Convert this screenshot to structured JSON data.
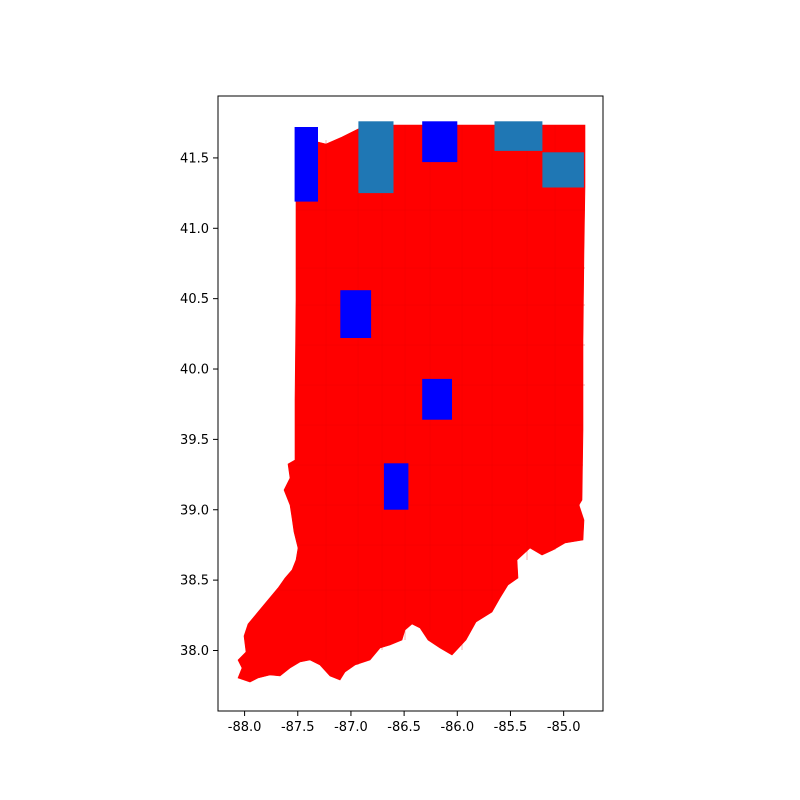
{
  "chart_data": {
    "type": "choropleth",
    "title": "",
    "xlabel": "",
    "ylabel": "",
    "xlim": [
      -88.25,
      -84.63
    ],
    "ylim": [
      37.57,
      41.94
    ],
    "x_ticks": [
      "-88.0",
      "-87.5",
      "-87.0",
      "-86.5",
      "-86.0",
      "-85.5",
      "-85.0"
    ],
    "x_tick_values": [
      -88.0,
      -87.5,
      -87.0,
      -86.5,
      -86.0,
      -85.5,
      -85.0
    ],
    "y_ticks": [
      "38.0",
      "38.5",
      "39.0",
      "39.5",
      "40.0",
      "40.5",
      "41.0",
      "41.5"
    ],
    "y_tick_values": [
      38.0,
      38.5,
      39.0,
      39.5,
      40.0,
      40.5,
      41.0,
      41.5
    ],
    "grid": false,
    "legend": "none",
    "colors": {
      "majority_red": "#ff0000",
      "blue": "#0000ff",
      "steel_blue": "#1f77b4",
      "axes_edge": "#000000",
      "background": "#ffffff"
    },
    "state_fill": "#ff0000",
    "highlighted_regions": [
      {
        "category": "blue",
        "color": "#0000ff",
        "lon_range": [
          -87.53,
          -87.31
        ],
        "lat_range": [
          41.19,
          41.72
        ]
      },
      {
        "category": "blue",
        "color": "#0000ff",
        "lon_range": [
          -86.33,
          -86.0
        ],
        "lat_range": [
          41.47,
          41.76
        ]
      },
      {
        "category": "blue",
        "color": "#0000ff",
        "lon_range": [
          -87.1,
          -86.81
        ],
        "lat_range": [
          40.22,
          40.56
        ]
      },
      {
        "category": "blue",
        "color": "#0000ff",
        "lon_range": [
          -86.33,
          -86.05
        ],
        "lat_range": [
          39.64,
          39.93
        ]
      },
      {
        "category": "blue",
        "color": "#0000ff",
        "lon_range": [
          -86.69,
          -86.46
        ],
        "lat_range": [
          39.0,
          39.33
        ]
      },
      {
        "category": "steel_blue",
        "color": "#1f77b4",
        "lon_range": [
          -86.93,
          -86.6
        ],
        "lat_range": [
          41.25,
          41.76
        ]
      },
      {
        "category": "steel_blue",
        "color": "#1f77b4",
        "lon_range": [
          -85.65,
          -85.2
        ],
        "lat_range": [
          41.55,
          41.76
        ]
      },
      {
        "category": "steel_blue",
        "color": "#1f77b4",
        "lon_range": [
          -85.2,
          -84.81
        ],
        "lat_range": [
          41.29,
          41.54
        ]
      }
    ]
  }
}
